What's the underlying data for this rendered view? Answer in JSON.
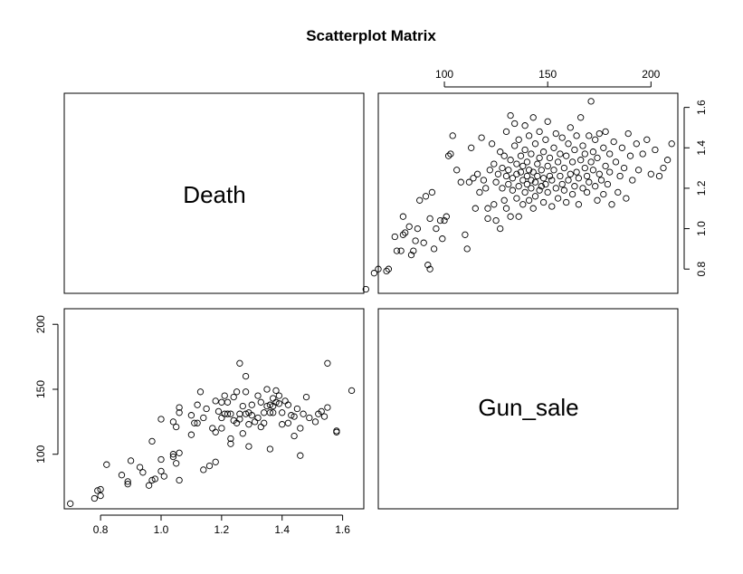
{
  "title": "Scatterplot Matrix",
  "variables": [
    "Death",
    "Gun_sale"
  ],
  "chart_data": [
    {
      "type": "scatter",
      "panel": "top-right",
      "x_variable": "Gun_sale",
      "y_variable": "Death",
      "xlim": [
        68,
        213
      ],
      "ylim": [
        0.68,
        1.67
      ],
      "x_ticks": [
        100,
        150,
        200
      ],
      "y_ticks": [
        0.8,
        1.0,
        1.2,
        1.4,
        1.6
      ],
      "x_tick_labels": [
        "100",
        "150",
        "200"
      ],
      "y_tick_labels": [
        "0.8",
        "1.0",
        "1.2",
        "1.4",
        "1.6"
      ],
      "x_axis_side": "top",
      "y_axis_side": "right",
      "points": [
        [
          62,
          0.7
        ],
        [
          66,
          0.78
        ],
        [
          68,
          0.8
        ],
        [
          72,
          0.79
        ],
        [
          73,
          0.8
        ],
        [
          76,
          0.96
        ],
        [
          77,
          0.89
        ],
        [
          79,
          0.89
        ],
        [
          80,
          0.97
        ],
        [
          80,
          1.06
        ],
        [
          81,
          0.98
        ],
        [
          83,
          1.01
        ],
        [
          84,
          0.87
        ],
        [
          85,
          0.89
        ],
        [
          86,
          0.94
        ],
        [
          87,
          1.0
        ],
        [
          88,
          1.14
        ],
        [
          90,
          0.93
        ],
        [
          91,
          1.16
        ],
        [
          92,
          0.82
        ],
        [
          93,
          0.8
        ],
        [
          93,
          1.05
        ],
        [
          94,
          1.18
        ],
        [
          95,
          0.9
        ],
        [
          96,
          1.0
        ],
        [
          98,
          1.04
        ],
        [
          99,
          0.95
        ],
        [
          100,
          1.04
        ],
        [
          101,
          1.06
        ],
        [
          102,
          1.36
        ],
        [
          103,
          1.37
        ],
        [
          104,
          1.46
        ],
        [
          106,
          1.29
        ],
        [
          108,
          1.23
        ],
        [
          110,
          0.97
        ],
        [
          111,
          0.9
        ],
        [
          112,
          1.23
        ],
        [
          113,
          1.4
        ],
        [
          114,
          1.25
        ],
        [
          115,
          1.1
        ],
        [
          116,
          1.27
        ],
        [
          117,
          1.18
        ],
        [
          118,
          1.45
        ],
        [
          119,
          1.24
        ],
        [
          120,
          1.2
        ],
        [
          121,
          1.05
        ],
        [
          121,
          1.1
        ],
        [
          122,
          1.29
        ],
        [
          123,
          1.42
        ],
        [
          124,
          1.12
        ],
        [
          124,
          1.32
        ],
        [
          125,
          1.04
        ],
        [
          125,
          1.23
        ],
        [
          126,
          1.27
        ],
        [
          127,
          1.0
        ],
        [
          127,
          1.38
        ],
        [
          128,
          1.2
        ],
        [
          128,
          1.3
        ],
        [
          129,
          1.14
        ],
        [
          129,
          1.36
        ],
        [
          130,
          1.1
        ],
        [
          130,
          1.26
        ],
        [
          130,
          1.48
        ],
        [
          131,
          1.22
        ],
        [
          131,
          1.29
        ],
        [
          132,
          1.06
        ],
        [
          132,
          1.34
        ],
        [
          132,
          1.56
        ],
        [
          133,
          1.19
        ],
        [
          133,
          1.25
        ],
        [
          134,
          1.41
        ],
        [
          134,
          1.52
        ],
        [
          135,
          1.15
        ],
        [
          135,
          1.27
        ],
        [
          135,
          1.32
        ],
        [
          136,
          1.06
        ],
        [
          136,
          1.21
        ],
        [
          136,
          1.44
        ],
        [
          137,
          1.28
        ],
        [
          137,
          1.36
        ],
        [
          138,
          1.12
        ],
        [
          138,
          1.24
        ],
        [
          138,
          1.31
        ],
        [
          139,
          1.18
        ],
        [
          139,
          1.39
        ],
        [
          139,
          1.51
        ],
        [
          140,
          1.22
        ],
        [
          140,
          1.26
        ],
        [
          140,
          1.33
        ],
        [
          141,
          1.14
        ],
        [
          141,
          1.29
        ],
        [
          141,
          1.46
        ],
        [
          142,
          1.2
        ],
        [
          142,
          1.24
        ],
        [
          142,
          1.37
        ],
        [
          143,
          1.1
        ],
        [
          143,
          1.28
        ],
        [
          143,
          1.55
        ],
        [
          144,
          1.16
        ],
        [
          144,
          1.23
        ],
        [
          144,
          1.42
        ],
        [
          145,
          1.26
        ],
        [
          145,
          1.32
        ],
        [
          146,
          1.19
        ],
        [
          146,
          1.35
        ],
        [
          146,
          1.48
        ],
        [
          147,
          1.21
        ],
        [
          147,
          1.29
        ],
        [
          148,
          1.13
        ],
        [
          148,
          1.25
        ],
        [
          148,
          1.38
        ],
        [
          149,
          1.22
        ],
        [
          149,
          1.44
        ],
        [
          150,
          1.18
        ],
        [
          150,
          1.31
        ],
        [
          150,
          1.53
        ],
        [
          151,
          1.26
        ],
        [
          151,
          1.35
        ],
        [
          152,
          1.11
        ],
        [
          152,
          1.24
        ],
        [
          153,
          1.29
        ],
        [
          153,
          1.4
        ],
        [
          154,
          1.2
        ],
        [
          154,
          1.47
        ],
        [
          155,
          1.15
        ],
        [
          155,
          1.33
        ],
        [
          156,
          1.26
        ],
        [
          156,
          1.37
        ],
        [
          157,
          1.22
        ],
        [
          157,
          1.45
        ],
        [
          158,
          1.19
        ],
        [
          158,
          1.3
        ],
        [
          159,
          1.13
        ],
        [
          159,
          1.36
        ],
        [
          160,
          1.24
        ],
        [
          160,
          1.42
        ],
        [
          161,
          1.27
        ],
        [
          161,
          1.5
        ],
        [
          162,
          1.17
        ],
        [
          162,
          1.33
        ],
        [
          163,
          1.21
        ],
        [
          163,
          1.39
        ],
        [
          164,
          1.28
        ],
        [
          164,
          1.46
        ],
        [
          165,
          1.12
        ],
        [
          165,
          1.25
        ],
        [
          166,
          1.34
        ],
        [
          166,
          1.55
        ],
        [
          167,
          1.2
        ],
        [
          167,
          1.41
        ],
        [
          168,
          1.3
        ],
        [
          168,
          1.37
        ],
        [
          169,
          1.18
        ],
        [
          169,
          1.26
        ],
        [
          170,
          1.23
        ],
        [
          170,
          1.46
        ],
        [
          171,
          1.33
        ],
        [
          171,
          1.63
        ],
        [
          172,
          1.29
        ],
        [
          172,
          1.38
        ],
        [
          173,
          1.21
        ],
        [
          173,
          1.44
        ],
        [
          174,
          1.14
        ],
        [
          174,
          1.35
        ],
        [
          175,
          1.27
        ],
        [
          175,
          1.47
        ],
        [
          176,
          1.24
        ],
        [
          177,
          1.4
        ],
        [
          177,
          1.17
        ],
        [
          178,
          1.31
        ],
        [
          178,
          1.48
        ],
        [
          179,
          1.22
        ],
        [
          180,
          1.37
        ],
        [
          180,
          1.28
        ],
        [
          181,
          1.12
        ],
        [
          182,
          1.43
        ],
        [
          183,
          1.33
        ],
        [
          184,
          1.18
        ],
        [
          185,
          1.26
        ],
        [
          186,
          1.4
        ],
        [
          187,
          1.3
        ],
        [
          188,
          1.15
        ],
        [
          189,
          1.47
        ],
        [
          190,
          1.36
        ],
        [
          191,
          1.24
        ],
        [
          193,
          1.42
        ],
        [
          194,
          1.29
        ],
        [
          196,
          1.37
        ],
        [
          198,
          1.44
        ],
        [
          200,
          1.27
        ],
        [
          202,
          1.39
        ],
        [
          204,
          1.26
        ],
        [
          206,
          1.3
        ],
        [
          208,
          1.34
        ],
        [
          210,
          1.42
        ]
      ]
    },
    {
      "type": "scatter",
      "panel": "bottom-left",
      "x_variable": "Death",
      "y_variable": "Gun_sale",
      "xlim": [
        0.68,
        1.67
      ],
      "ylim": [
        58,
        212
      ],
      "x_ticks": [
        0.8,
        1.0,
        1.2,
        1.4,
        1.6
      ],
      "y_ticks": [
        100,
        150,
        200
      ],
      "x_tick_labels": [
        "0.8",
        "1.0",
        "1.2",
        "1.4",
        "1.6"
      ],
      "y_tick_labels": [
        "100",
        "150",
        "200"
      ],
      "x_axis_side": "bottom",
      "y_axis_side": "left",
      "points": [
        [
          0.7,
          62
        ],
        [
          0.78,
          66
        ],
        [
          0.79,
          72
        ],
        [
          0.8,
          68
        ],
        [
          0.8,
          73
        ],
        [
          0.82,
          92
        ],
        [
          0.87,
          84
        ],
        [
          0.89,
          77
        ],
        [
          0.89,
          79
        ],
        [
          0.9,
          95
        ],
        [
          0.93,
          90
        ],
        [
          0.94,
          86
        ],
        [
          0.96,
          76
        ],
        [
          0.97,
          80
        ],
        [
          0.97,
          110
        ],
        [
          0.98,
          81
        ],
        [
          1.0,
          87
        ],
        [
          1.0,
          96
        ],
        [
          1.0,
          127
        ],
        [
          1.01,
          83
        ],
        [
          1.04,
          98
        ],
        [
          1.04,
          100
        ],
        [
          1.04,
          125
        ],
        [
          1.05,
          93
        ],
        [
          1.05,
          121
        ],
        [
          1.06,
          80
        ],
        [
          1.06,
          101
        ],
        [
          1.06,
          132
        ],
        [
          1.06,
          136
        ],
        [
          1.1,
          115
        ],
        [
          1.1,
          130
        ],
        [
          1.11,
          124
        ],
        [
          1.12,
          124
        ],
        [
          1.12,
          138
        ],
        [
          1.13,
          148
        ],
        [
          1.14,
          88
        ],
        [
          1.14,
          128
        ],
        [
          1.15,
          135
        ],
        [
          1.16,
          91
        ],
        [
          1.17,
          120
        ],
        [
          1.18,
          94
        ],
        [
          1.18,
          117
        ],
        [
          1.18,
          141
        ],
        [
          1.19,
          133
        ],
        [
          1.2,
          120
        ],
        [
          1.2,
          128
        ],
        [
          1.2,
          140
        ],
        [
          1.21,
          131
        ],
        [
          1.21,
          145
        ],
        [
          1.22,
          131
        ],
        [
          1.22,
          140
        ],
        [
          1.23,
          108
        ],
        [
          1.23,
          112
        ],
        [
          1.23,
          131
        ],
        [
          1.24,
          144
        ],
        [
          1.24,
          126
        ],
        [
          1.25,
          124
        ],
        [
          1.25,
          148
        ],
        [
          1.26,
          127
        ],
        [
          1.26,
          131
        ],
        [
          1.26,
          170
        ],
        [
          1.27,
          116
        ],
        [
          1.27,
          137
        ],
        [
          1.28,
          131
        ],
        [
          1.28,
          148
        ],
        [
          1.28,
          160
        ],
        [
          1.29,
          106
        ],
        [
          1.29,
          123
        ],
        [
          1.29,
          132
        ],
        [
          1.3,
          130
        ],
        [
          1.3,
          138
        ],
        [
          1.31,
          125
        ],
        [
          1.32,
          128
        ],
        [
          1.32,
          145
        ],
        [
          1.33,
          121
        ],
        [
          1.33,
          140
        ],
        [
          1.34,
          124
        ],
        [
          1.34,
          132
        ],
        [
          1.35,
          137
        ],
        [
          1.35,
          150
        ],
        [
          1.36,
          132
        ],
        [
          1.36,
          138
        ],
        [
          1.36,
          104
        ],
        [
          1.37,
          137
        ],
        [
          1.37,
          143
        ],
        [
          1.37,
          132
        ],
        [
          1.38,
          140
        ],
        [
          1.38,
          149
        ],
        [
          1.39,
          139
        ],
        [
          1.39,
          145
        ],
        [
          1.4,
          123
        ],
        [
          1.4,
          132
        ],
        [
          1.41,
          141
        ],
        [
          1.42,
          124
        ],
        [
          1.42,
          138
        ],
        [
          1.43,
          130
        ],
        [
          1.44,
          114
        ],
        [
          1.44,
          129
        ],
        [
          1.45,
          135
        ],
        [
          1.46,
          99
        ],
        [
          1.46,
          120
        ],
        [
          1.47,
          131
        ],
        [
          1.48,
          144
        ],
        [
          1.49,
          128
        ],
        [
          1.51,
          125
        ],
        [
          1.52,
          131
        ],
        [
          1.53,
          133
        ],
        [
          1.54,
          129
        ],
        [
          1.55,
          136
        ],
        [
          1.55,
          170
        ],
        [
          1.58,
          117
        ],
        [
          1.58,
          118
        ],
        [
          1.63,
          149
        ]
      ]
    }
  ]
}
